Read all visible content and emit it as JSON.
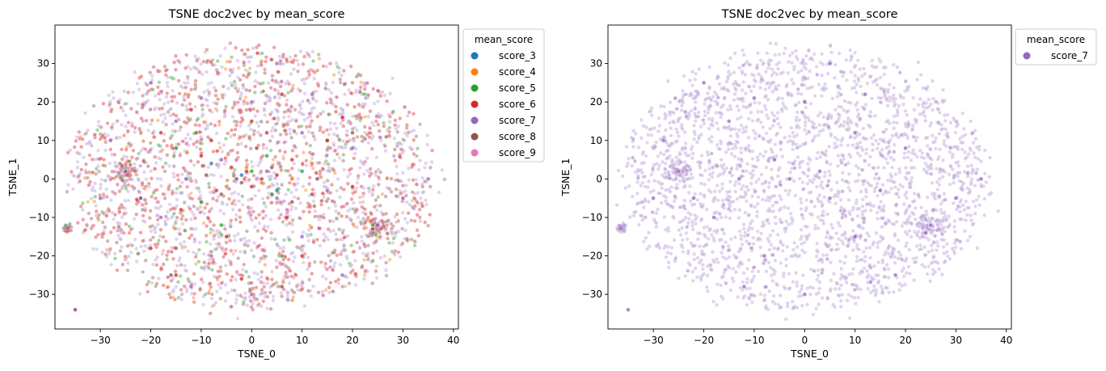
{
  "chart_data": [
    {
      "type": "scatter",
      "title": "TSNE doc2vec by mean_score",
      "xlabel": "TSNE_0",
      "ylabel": "TSNE_1",
      "xlim": [
        -39,
        41
      ],
      "ylim": [
        -39,
        40
      ],
      "xticks": [
        -30,
        -20,
        -10,
        0,
        10,
        20,
        30,
        40
      ],
      "yticks": [
        -30,
        -20,
        -10,
        0,
        10,
        20,
        30
      ],
      "grid": false,
      "legend": {
        "title": "mean_score",
        "placement": "outside-right-top",
        "entries": [
          "score_3",
          "score_4",
          "score_5",
          "score_6",
          "score_7",
          "score_8",
          "score_9"
        ]
      },
      "series": [
        {
          "name": "score_3",
          "color": "#1f77b4",
          "points": [
            [
              -2,
              1
            ],
            [
              5,
              -3
            ],
            [
              -8,
              4
            ]
          ]
        },
        {
          "name": "score_4",
          "color": "#ff7f0e",
          "points": [
            [
              -1,
              3
            ],
            [
              2,
              -1
            ],
            [
              8,
              0
            ],
            [
              -5,
              -2
            ],
            [
              12,
              4
            ]
          ]
        },
        {
          "name": "score_5",
          "color": "#2ca02c",
          "points": [
            [
              -3,
              0
            ],
            [
              0,
              2
            ],
            [
              4,
              -4
            ],
            [
              -10,
              -6
            ],
            [
              10,
              2
            ],
            [
              -22,
              -5
            ],
            [
              24,
              -12
            ],
            [
              3,
              6
            ],
            [
              -6,
              -12
            ],
            [
              15,
              10
            ],
            [
              -15,
              8
            ],
            [
              6,
              -20
            ]
          ]
        },
        {
          "name": "score_6",
          "color": "#d62728",
          "points": [
            [
              -1,
              2
            ],
            [
              2,
              0
            ],
            [
              -4,
              3
            ],
            [
              5,
              1
            ],
            [
              0,
              -2
            ],
            [
              -7,
              -3
            ],
            [
              8,
              5
            ],
            [
              -10,
              6
            ],
            [
              12,
              -4
            ],
            [
              -14,
              -8
            ],
            [
              15,
              10
            ],
            [
              -18,
              12
            ],
            [
              20,
              -2
            ],
            [
              -22,
              -5
            ],
            [
              24,
              -13
            ],
            [
              -25,
              2
            ],
            [
              -36.5,
              -12.8
            ],
            [
              -35,
              -34
            ],
            [
              3,
              12
            ],
            [
              -5,
              -15
            ],
            [
              10,
              -20
            ],
            [
              -12,
              18
            ],
            [
              6,
              22
            ],
            [
              -2,
              -26
            ],
            [
              18,
              16
            ],
            [
              -20,
              -18
            ],
            [
              25,
              -12
            ],
            [
              -15,
              -25
            ],
            [
              0,
              15
            ],
            [
              7,
              -10
            ],
            [
              -8,
              10
            ]
          ]
        },
        {
          "name": "score_7",
          "color": "#9467bd",
          "points": [
            [
              -36.5,
              -12.8
            ],
            [
              -35,
              -34
            ],
            [
              -25,
              2
            ],
            [
              -22,
              -5
            ],
            [
              25,
              -12
            ],
            [
              24,
              -14
            ],
            [
              -10,
              21
            ],
            [
              -15,
              15
            ],
            [
              -13,
              0
            ],
            [
              0,
              20
            ],
            [
              10,
              12
            ],
            [
              3,
              2
            ],
            [
              -3,
              0
            ],
            [
              5,
              -5
            ],
            [
              -6,
              5
            ],
            [
              15,
              -3
            ],
            [
              -18,
              -10
            ],
            [
              20,
              8
            ],
            [
              -8,
              -20
            ],
            [
              12,
              22
            ],
            [
              -28,
              10
            ],
            [
              30,
              -5
            ],
            [
              -20,
              25
            ],
            [
              18,
              -25
            ],
            [
              0,
              -30
            ],
            [
              5,
              30
            ],
            [
              -30,
              -5
            ],
            [
              35,
              0
            ],
            [
              -12,
              -28
            ],
            [
              10,
              -15
            ]
          ]
        },
        {
          "name": "score_8",
          "color": "#8c564b",
          "points": [
            [
              -2,
              -1
            ],
            [
              4,
              3
            ],
            [
              -6,
              -4
            ],
            [
              8,
              -6
            ],
            [
              -9,
              1
            ],
            [
              1,
              8
            ],
            [
              13,
              0
            ],
            [
              -11,
              12
            ],
            [
              -15,
              -18
            ],
            [
              20,
              12
            ],
            [
              -16,
              -25
            ],
            [
              6,
              -28
            ]
          ]
        },
        {
          "name": "score_9",
          "color": "#e377c2",
          "points": [
            [
              1,
              0
            ],
            [
              -3,
              5
            ],
            [
              7,
              -8
            ]
          ]
        }
      ]
    },
    {
      "type": "scatter",
      "title": "TSNE doc2vec by mean_score",
      "xlabel": "TSNE_0",
      "ylabel": "TSNE_1",
      "xlim": [
        -39,
        41
      ],
      "ylim": [
        -39,
        40
      ],
      "xticks": [
        -30,
        -20,
        -10,
        0,
        10,
        20,
        30,
        40
      ],
      "yticks": [
        -30,
        -20,
        -10,
        0,
        10,
        20,
        30
      ],
      "grid": false,
      "legend": {
        "title": "mean_score",
        "placement": "outside-right-top",
        "entries": [
          "score_7"
        ]
      },
      "series": [
        {
          "name": "score_7",
          "color": "#9467bd",
          "points": [
            [
              -36.5,
              -12.8
            ],
            [
              -35,
              -34
            ],
            [
              -25,
              2
            ],
            [
              -22,
              -5
            ],
            [
              25,
              -12
            ],
            [
              24,
              -14
            ],
            [
              -10,
              21
            ],
            [
              -15,
              15
            ],
            [
              -13,
              0
            ],
            [
              0,
              20
            ],
            [
              10,
              12
            ],
            [
              3,
              2
            ],
            [
              -3,
              0
            ],
            [
              5,
              -5
            ],
            [
              -6,
              5
            ],
            [
              15,
              -3
            ],
            [
              -18,
              -10
            ],
            [
              20,
              8
            ],
            [
              -8,
              -20
            ],
            [
              12,
              22
            ],
            [
              -28,
              10
            ],
            [
              30,
              -5
            ],
            [
              -20,
              25
            ],
            [
              18,
              -25
            ],
            [
              0,
              -30
            ],
            [
              5,
              30
            ],
            [
              -30,
              -5
            ],
            [
              35,
              0
            ],
            [
              -12,
              -28
            ],
            [
              10,
              -15
            ]
          ]
        }
      ]
    }
  ]
}
